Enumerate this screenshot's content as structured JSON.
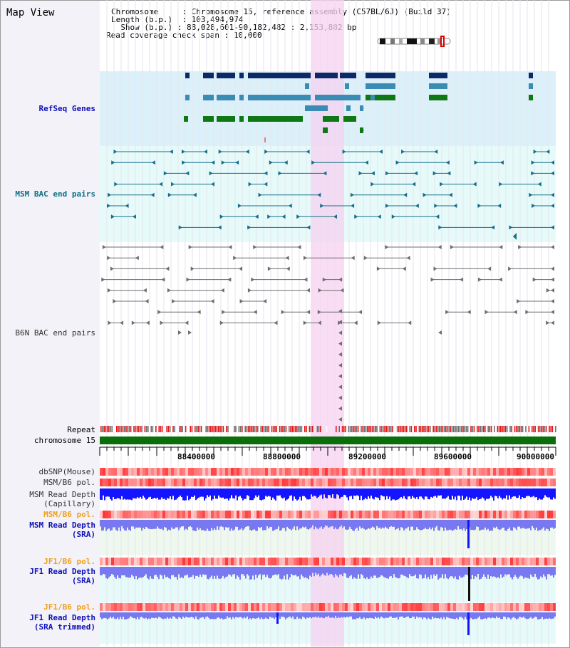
{
  "title": "Map View",
  "info": {
    "chromosome_label": "Chromosome",
    "chromosome_value": "Chromosome 15, reference assembly (C57BL/6J) (Build 37)",
    "length_label": "Length (b.p.)",
    "length_value": "103,494,974",
    "show_label": "Show (b.p.)",
    "show_value": "88,028,601-90,182,482 : 2,153,882 bp",
    "coverage_label": "Read coverage check span",
    "coverage_value": "10,000"
  },
  "tracks": {
    "refseq": "RefSeq Genes",
    "msm_bac": "MSM BAC end pairs",
    "b6n_bac": "B6N BAC end pairs",
    "repeat": "Repeat",
    "chromosome": "chromosome 15",
    "dbsnp": "dbSNP(Mouse)",
    "msm_b6_pol": "MSM/B6 pol.",
    "msm_read_depth_cap_1": "MSM Read Depth",
    "msm_read_depth_cap_2": "(Capillary)",
    "msm_b6_pol_2": "MSM/B6 pol.",
    "msm_read_depth_sra_1": "MSM Read Depth",
    "msm_read_depth_sra_2": "(SRA)",
    "jf1_b6_pol": "JF1/B6 pol.",
    "jf1_read_depth_sra_1": "JF1 Read Depth",
    "jf1_read_depth_sra_2": "(SRA)",
    "jf1_b6_pol_2": "JF1/B6 pol.",
    "jf1_read_depth_trim_1": "JF1 Read Depth",
    "jf1_read_depth_trim_2": "(SRA trimmed)"
  },
  "axis": {
    "ticks": [
      "88400000",
      "88800000",
      "89200000",
      "89600000",
      "90000000"
    ]
  },
  "colors": {
    "refseq_bg": "#dcf0fa",
    "bac_bg": "#e6fafa",
    "highlight": "#f5d2f0",
    "gene_navy": "#0c2a68",
    "gene_teal": "#3a8cb4",
    "gene_green": "#0f7814",
    "bac_teal": "#166e8a",
    "bac_grey": "#6e6e6e",
    "depth_blue": "#1414ff",
    "depth_light": "#7878f0",
    "pol_red": "#ff6060"
  }
}
